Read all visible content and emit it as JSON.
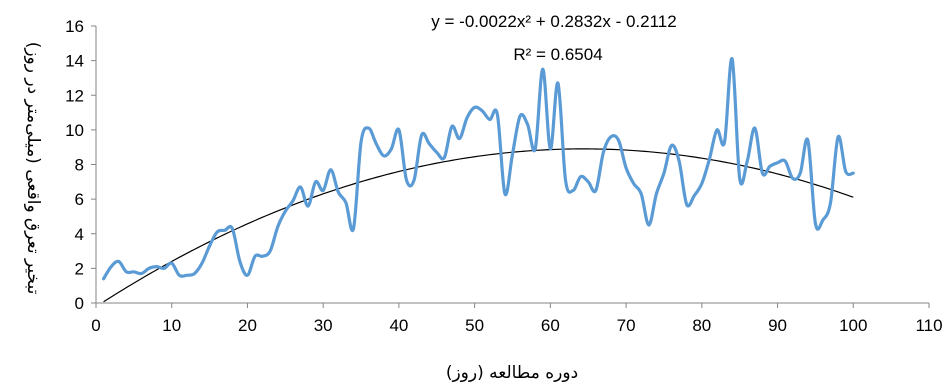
{
  "chart_data": {
    "type": "line",
    "xlabel": "دوره مطالعه (روز)",
    "ylabel": "تبخیر تعرق واقعی (میلی‌متر در روز)",
    "xlim": [
      0,
      110
    ],
    "ylim": [
      0,
      16
    ],
    "x_ticks": [
      "0",
      "10",
      "20",
      "30",
      "40",
      "50",
      "60",
      "70",
      "80",
      "90",
      "100",
      "110"
    ],
    "y_ticks": [
      "0",
      "2",
      "4",
      "6",
      "8",
      "10",
      "12",
      "14",
      "16"
    ],
    "grid": false,
    "legend": "none",
    "colors": {
      "series": "#5B9BD5",
      "trend": "#000000"
    },
    "series": [
      {
        "x": [
          1,
          2,
          3,
          4,
          5,
          6,
          7,
          8,
          9,
          10,
          11,
          12,
          13,
          14,
          15,
          16,
          17,
          18,
          19,
          20,
          21,
          22,
          23,
          24,
          25,
          26,
          27,
          28,
          29,
          30,
          31,
          32,
          33,
          34,
          35,
          36,
          37,
          38,
          39,
          40,
          41,
          42,
          43,
          44,
          45,
          46,
          47,
          48,
          49,
          50,
          51,
          52,
          53,
          54,
          55,
          56,
          57,
          58,
          59,
          60,
          61,
          62,
          63,
          64,
          65,
          66,
          67,
          68,
          69,
          70,
          71,
          72,
          73,
          74,
          75,
          76,
          77,
          78,
          79,
          80,
          81,
          82,
          83,
          84,
          85,
          86,
          87,
          88,
          89,
          90,
          91,
          92,
          93,
          94,
          95,
          96,
          97,
          98,
          99,
          100
        ],
        "values": [
          1.4,
          2.1,
          2.4,
          1.8,
          1.8,
          1.7,
          2.0,
          2.1,
          2.0,
          2.3,
          1.6,
          1.6,
          1.7,
          2.3,
          3.3,
          4.1,
          4.2,
          4.3,
          2.4,
          1.6,
          2.7,
          2.7,
          3.0,
          4.4,
          5.3,
          5.9,
          6.7,
          5.6,
          7.0,
          6.5,
          7.7,
          6.4,
          5.8,
          4.3,
          9.3,
          10.1,
          9.2,
          8.5,
          8.9,
          10.0,
          7.1,
          7.1,
          9.7,
          9.2,
          8.7,
          8.4,
          10.2,
          9.5,
          10.7,
          11.3,
          11.1,
          10.6,
          10.9,
          6.3,
          8.6,
          10.8,
          10.3,
          8.9,
          13.5,
          8.9,
          12.7,
          7.1,
          6.5,
          7.3,
          7.0,
          6.5,
          8.7,
          9.6,
          9.4,
          7.8,
          6.9,
          6.3,
          4.5,
          6.3,
          7.5,
          9.1,
          8.2,
          5.7,
          6.2,
          6.9,
          8.3,
          10.0,
          9.3,
          14.1,
          7.2,
          8.2,
          10.1,
          7.5,
          7.9,
          8.1,
          8.2,
          7.2,
          7.5,
          9.4,
          4.6,
          4.8,
          5.8,
          9.6,
          7.6,
          7.5
        ]
      }
    ],
    "trendline": {
      "type": "polynomial",
      "coefficients": [
        -0.0022,
        0.2832,
        -0.2112
      ],
      "x_range": [
        1,
        100
      ],
      "equation_sup": "2",
      "equation": "y = -0.0022x² + 0.2832x - 0.2112",
      "r_squared": "R² = 0.6504"
    }
  }
}
